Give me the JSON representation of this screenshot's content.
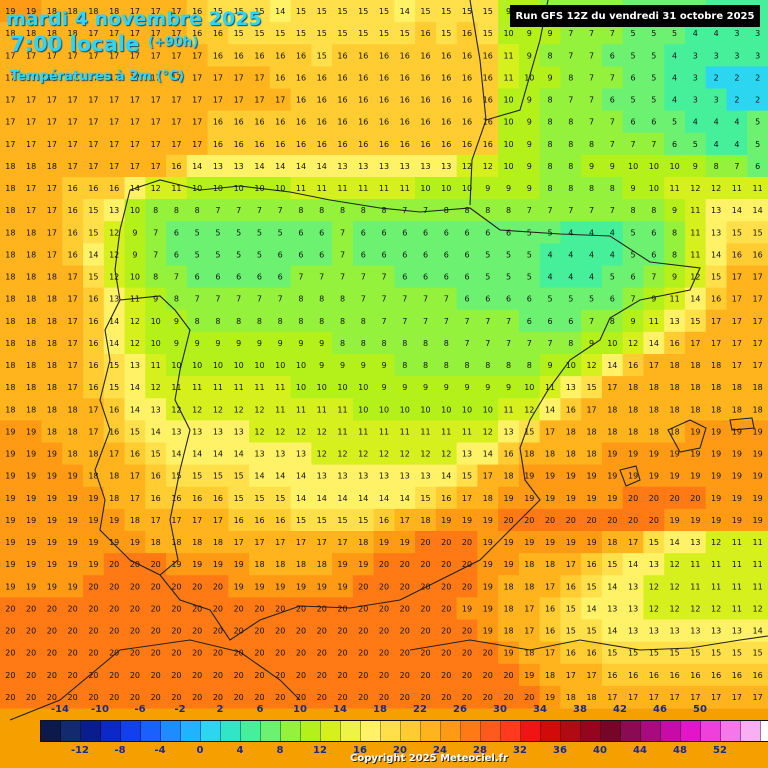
{
  "header": {
    "date": "mardi 4 novembre 2025",
    "time": "7:00 locale",
    "lead": "(+90h)",
    "variable": "Températures à 2m (°C)",
    "run": "Run GFS 12Z du vendredi 31 octobre 2025"
  },
  "legend": {
    "colors": [
      "#0b1a4a",
      "#142a6e",
      "#0a1d8c",
      "#0c28c8",
      "#1240ee",
      "#1a60ff",
      "#1e8cff",
      "#20b4ff",
      "#2cd6f0",
      "#30e6c6",
      "#46ef9a",
      "#6cf270",
      "#94f23c",
      "#b4f01a",
      "#d6f01e",
      "#eef446",
      "#fff266",
      "#ffe04a",
      "#ffcc32",
      "#ffb41e",
      "#ff9a14",
      "#ff7a14",
      "#ff5a1e",
      "#ff3a1e",
      "#f01414",
      "#d20a0a",
      "#b20a14",
      "#94061e",
      "#760628",
      "#8a0a54",
      "#a80a80",
      "#c80aa8",
      "#e414c8",
      "#f040dc",
      "#f478ea",
      "#f8b0f2",
      "#ffffff"
    ],
    "labels_top": [
      "-14",
      "-10",
      "-6",
      "-2",
      "2",
      "6",
      "10",
      "14",
      "18",
      "22",
      "26",
      "30",
      "34",
      "38",
      "42",
      "46",
      "50"
    ],
    "labels_bottom": [
      "-12",
      "-8",
      "-4",
      "0",
      "4",
      "8",
      "12",
      "16",
      "20",
      "24",
      "28",
      "32",
      "36",
      "40",
      "44",
      "48",
      "52"
    ]
  },
  "copyright": "Copyright 2025 Meteociel.fr",
  "grid": {
    "rows": [
      "19 19 18 18 18 18 17 17 17 16 15 15 15 14 15 15 15 15 15 14 15 15 15 15 9 9 8 8 7 7 6 5 5 5 4 4 4",
      "18 18 18 18 17 17 17 17 17 16 16 15 15 15 15 15 15 15 15 15 16 15 16 15 10 9 9 7 7 7 5 5 5 4 4 3 3",
      "17 17 17 17 17 17 17 17 17 17 16 16 16 16 16 15 16 16 16 16 16 16 16 16 11 9 8 7 7 6 5 5 4 3 3 3 3",
      "17 17 17 17 17 17 17 17 17 17 17 17 17 16 16 16 16 16 16 16 16 16 16 16 11 10 9 8 7 7 6 5 4 3 2 2 2",
      "17 17 17 17 17 17 17 17 17 17 17 17 17 17 16 16 16 16 16 16 16 16 16 16 10 9 8 7 7 6 5 5 4 3 3 2 2",
      "17 17 17 17 17 17 17 17 17 17 16 16 16 16 16 16 16 16 16 16 16 16 16 16 10 9 8 8 7 7 6 6 5 4 4 4 5",
      "17 17 17 17 17 17 17 17 17 17 16 16 16 16 16 16 16 16 16 16 16 16 16 16 10 9 8 8 8 7 7 7 6 5 4 4 5",
      "18 18 18 17 17 17 17 17 16 14 13 13 14 14 14 14 13 13 13 13 13 13 12 12 10 9 8 8 9 9 10 10 10 9 8 7 6",
      "18 17 17 16 16 16 14 12 11 10 10 10 10 10 11 11 11 11 11 11 10 10 10 9 9 9 8 8 8 8 9 10 11 12 12 11 11",
      "18 17 17 16 15 13 10 8 8 8 7 7 7 7 8 8 8 8 8 7 7 8 8 8 8 7 7 7 7 7 8 8 9 11 13 14 14",
      "18 18 17 16 15 12 9 7 6 5 5 5 5 5 6 6 7 6 6 6 6 6 6 6 6 5 5 4 4 4 5 6 8 11 13 15 15",
      "18 18 17 16 14 12 9 7 6 5 5 5 5 6 6 6 7 6 6 6 6 6 6 5 5 5 4 4 4 4 5 6 8 11 14 16 16",
      "18 18 18 17 15 12 10 8 7 6 6 6 6 6 7 7 7 7 7 6 6 6 6 5 5 5 4 4 4 5 6 7 9 12 15 17 17",
      "18 18 18 17 16 13 11 9 8 7 7 7 7 7 8 8 8 7 7 7 7 7 6 6 6 6 5 5 5 6 7 9 11 14 16 17 17",
      "18 18 18 17 16 14 12 10 9 8 8 8 8 8 8 8 8 8 7 7 7 7 7 7 7 6 6 6 7 8 9 11 13 15 17 17 17",
      "18 18 18 17 16 14 12 10 9 9 9 9 9 9 9 9 8 8 8 8 8 8 7 7 7 7 7 8 9 10 12 14 16 17 17 17 17",
      "18 18 18 17 16 15 13 11 10 10 10 10 10 10 10 9 9 9 9 8 8 8 8 8 8 8 9 10 12 14 16 17 18 18 18 17 17",
      "18 18 18 17 16 15 14 12 11 11 11 11 11 11 10 10 10 10 9 9 9 9 9 9 9 10 11 13 15 17 18 18 18 18 18 18 18",
      "18 18 18 18 17 16 14 13 12 12 12 12 12 11 11 11 11 10 10 10 10 10 10 10 11 12 14 16 17 18 18 18 18 18 18 18 18",
      "19 19 18 18 17 16 15 14 13 13 13 13 12 12 12 12 11 11 11 11 11 11 11 12 13 15 17 18 18 18 18 18 18 19 19 19 19",
      "19 19 19 18 18 17 16 15 14 14 14 14 13 13 13 12 12 12 12 12 12 12 13 14 16 18 18 18 18 19 19 19 19 19 19 19 19",
      "19 19 19 19 18 18 17 16 15 15 15 15 14 14 14 13 13 13 13 13 13 14 15 17 18 19 19 19 19 19 19 19 19 19 19 19 19",
      "19 19 19 19 19 18 17 16 16 16 16 15 15 15 14 14 14 14 14 14 15 16 17 18 19 19 19 19 19 19 20 20 20 20 19 19 19",
      "19 19 19 19 19 19 18 17 17 17 17 16 16 16 15 15 15 15 16 17 18 19 19 19 20 20 20 20 20 20 20 20 19 19 19 19 19",
      "19 19 19 19 19 19 19 18 18 18 18 17 17 17 17 17 17 18 19 19 20 20 20 19 19 19 19 19 19 18 17 15 14 13 12 11 11",
      "19 19 19 19 19 20 20 20 19 19 19 19 18 18 18 18 19 19 20 20 20 20 20 19 19 18 18 17 16 15 14 13 12 11 11 11 11",
      "19 19 19 19 20 20 20 20 20 20 20 19 19 19 19 19 19 20 20 20 20 20 20 19 18 18 17 16 15 14 13 12 12 11 11 11 11",
      "20 20 20 20 20 20 20 20 20 20 20 20 20 20 20 20 20 20 20 20 20 20 19 19 18 17 16 15 14 13 13 12 12 12 12 11 12",
      "20 20 20 20 20 20 20 20 20 20 20 20 20 20 20 20 20 20 20 20 20 20 20 19 18 17 16 15 15 14 13 13 13 13 13 13 14",
      "20 20 20 20 20 20 20 20 20 20 20 20 20 20 20 20 20 20 20 20 20 20 20 20 19 18 17 16 16 15 15 15 15 15 15 15 15",
      "20 20 20 20 20 20 20 20 20 20 20 20 20 20 20 20 20 20 20 20 20 20 20 20 20 19 18 17 17 16 16 16 16 16 16 16 16",
      "20 20 20 20 20 20 20 20 20 20 20 20 20 20 20 20 20 20 20 20 20 20 20 20 20 20 19 18 18 17 17 17 17 17 17 17 17"
    ]
  }
}
